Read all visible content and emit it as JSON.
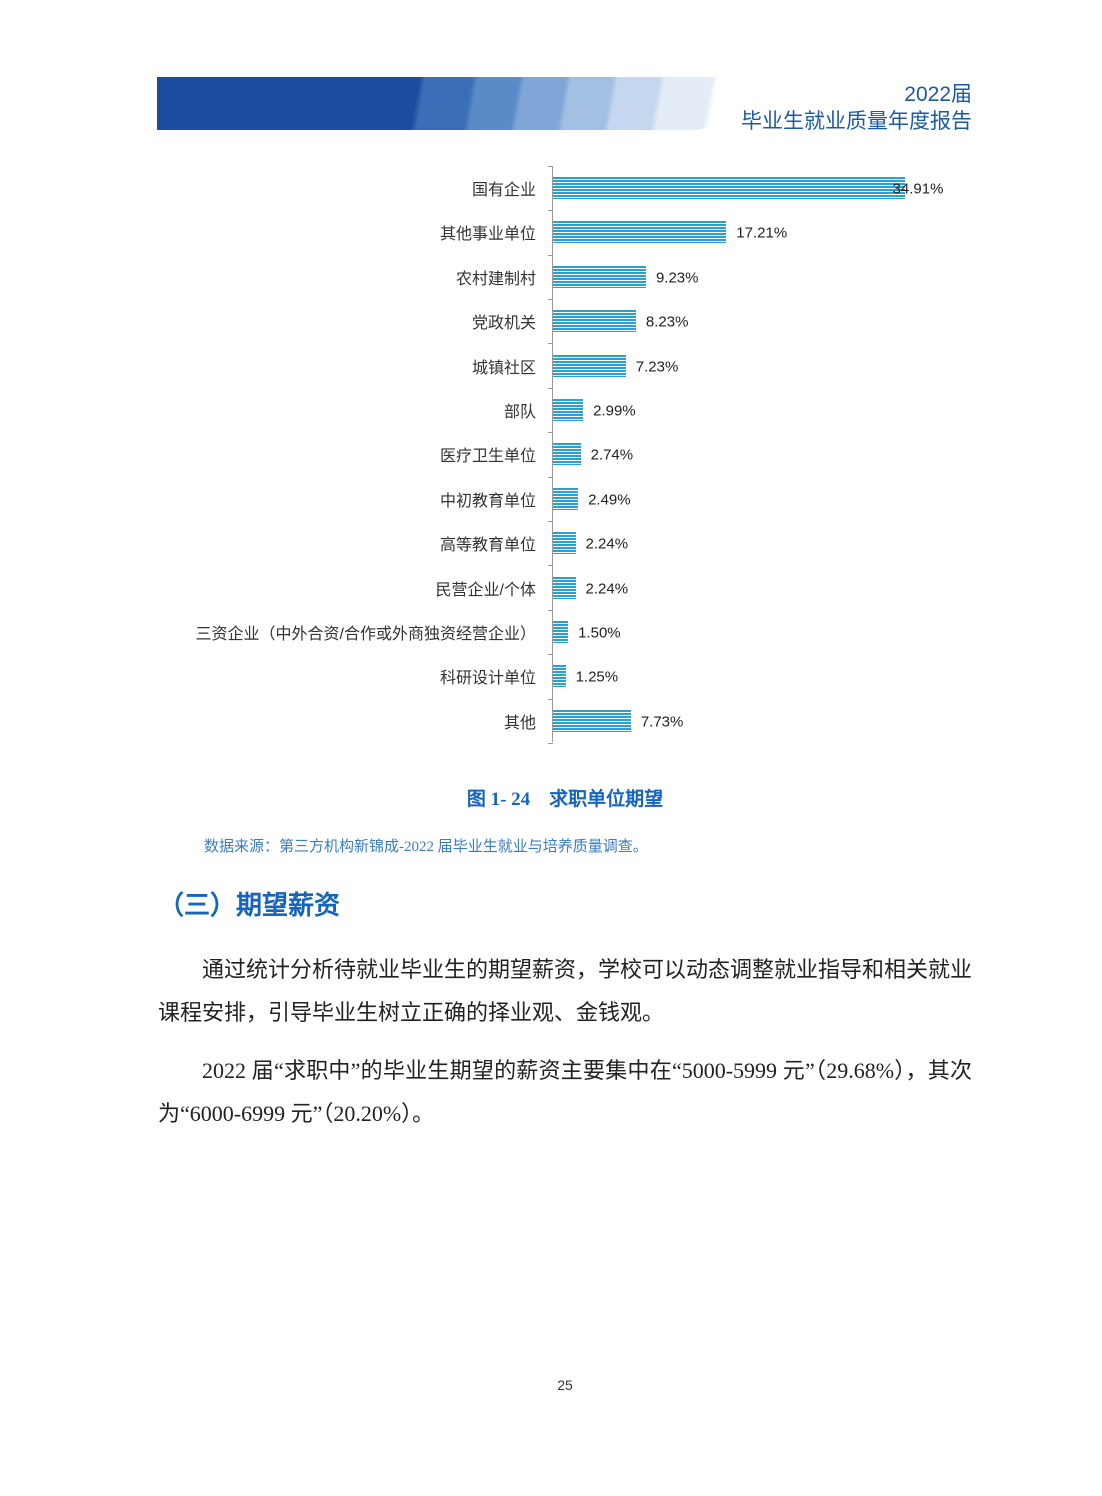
{
  "header": {
    "year": "2022届",
    "title": "毕业生就业质量年度报告"
  },
  "chart_data": {
    "type": "bar",
    "orientation": "horizontal",
    "categories": [
      "国有企业",
      "其他事业单位",
      "农村建制村",
      "党政机关",
      "城镇社区",
      "部队",
      "医疗卫生单位",
      "中初教育单位",
      "高等教育单位",
      "民营企业/个体",
      "三资企业（中外合资/合作或外商独资经营企业）",
      "科研设计单位",
      "其他"
    ],
    "values": [
      34.91,
      17.21,
      9.23,
      8.23,
      7.23,
      2.99,
      2.74,
      2.49,
      2.24,
      2.24,
      1.5,
      1.25,
      7.73
    ],
    "labels": [
      "34.91%",
      "17.21%",
      "9.23%",
      "8.23%",
      "7.23%",
      "2.99%",
      "2.74%",
      "2.49%",
      "2.24%",
      "2.24%",
      "1.50%",
      "1.25%",
      "7.73%"
    ],
    "unit": "%",
    "bar_color": "#2aa0d8",
    "grid": false,
    "legend": "none"
  },
  "figure": {
    "caption": "图 1- 24　求职单位期望",
    "source": "数据来源：第三方机构新锦成-2022 届毕业生就业与培养质量调查。"
  },
  "section": {
    "heading": "（三）期望薪资"
  },
  "paragraphs": [
    "通过统计分析待就业毕业生的期望薪资，学校可以动态调整就业指导和相关就业课程安排，引导毕业生树立正确的择业观、金钱观。",
    "2022 届“求职中”的毕业生期望的薪资主要集中在“5000-5999 元”（29.68%），其次为“6000-6999 元”（20.20%）。"
  ],
  "page_number": "25"
}
